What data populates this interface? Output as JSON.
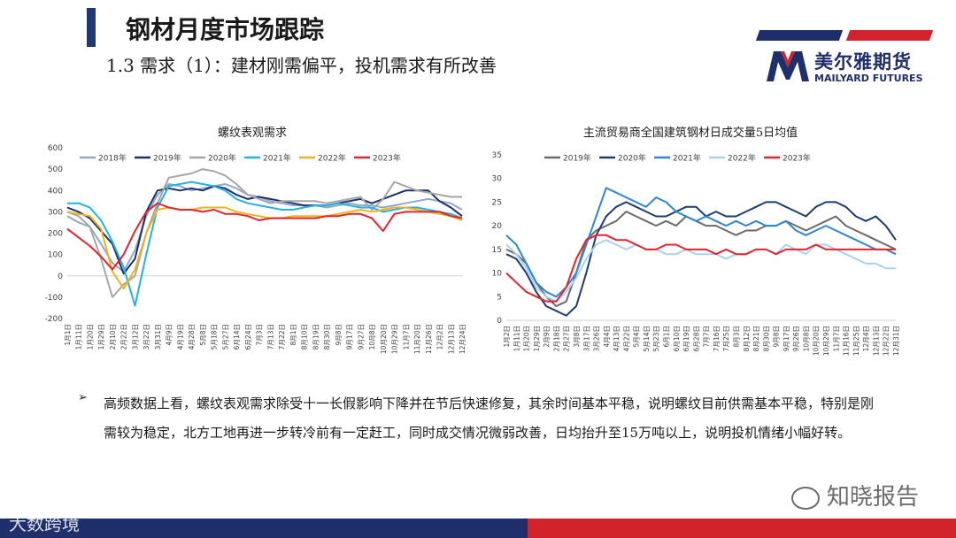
{
  "header": {
    "title": "钢材月度市场跟踪",
    "subtitle": "1.3 需求（1）：建材刚需偏平，投机需求有所改善"
  },
  "logo": {
    "cn": "美尔雅期货",
    "en": "MAILYARD FUTURES",
    "colors": {
      "blue": "#1f2f6b",
      "red": "#d2232a"
    }
  },
  "text": {
    "bullet": "➢",
    "paragraph": "高频数据上看，螺纹表观需求除受十一长假影响下降并在节后快速修复，其余时间基本平稳，说明螺纹目前供需基本平稳，特别是刚需较为稳定，北方工地再进一步转冷前有一定赶工，同时成交情况微弱改善，日均抬升至15万吨以上，说明投机情绪小幅好转。"
  },
  "watermarks": {
    "right": "知晓报告",
    "left": "大数跨境"
  },
  "chart_data": [
    {
      "type": "line",
      "title": "螺纹表观需求",
      "xlabel": "",
      "ylabel": "",
      "ylim": [
        -200,
        600
      ],
      "yticks": [
        -200,
        -100,
        0,
        100,
        200,
        300,
        400,
        500,
        600
      ],
      "x_tick_labels": [
        "1月1日",
        "1月11日",
        "1月20日",
        "1月29日",
        "2月10日",
        "2月22日",
        "3月12日",
        "3月22日",
        "3月31日",
        "4月9日",
        "4月19日",
        "4月28日",
        "5月8日",
        "5月18日",
        "5月27日",
        "6月14日",
        "6月24日",
        "7月3日",
        "7月13日",
        "7月22日",
        "8月1日",
        "8月10日",
        "8月19日",
        "8月30日",
        "9月8日",
        "9月17日",
        "9月27日",
        "10月8日",
        "10月20日",
        "10月29日",
        "11月7日",
        "11月20日",
        "11月26日",
        "12月2日",
        "12月13日",
        "12月24日"
      ],
      "series": [
        {
          "name": "2018年",
          "color": "#8fa9c9",
          "values": [
            280,
            250,
            230,
            150,
            60,
            20,
            120,
            280,
            380,
            430,
            420,
            400,
            410,
            420,
            430,
            410,
            380,
            370,
            350,
            340,
            330,
            330,
            330,
            320,
            330,
            340,
            330,
            330,
            320,
            330,
            340,
            350,
            360,
            350,
            340,
            310
          ]
        },
        {
          "name": "2019年",
          "color": "#1b2f6b",
          "values": [
            320,
            300,
            270,
            210,
            150,
            10,
            80,
            300,
            400,
            410,
            400,
            410,
            400,
            420,
            410,
            380,
            360,
            370,
            360,
            350,
            340,
            330,
            330,
            330,
            340,
            350,
            360,
            340,
            360,
            380,
            400,
            400,
            400,
            350,
            320,
            280
          ]
        },
        {
          "name": "2020年",
          "color": "#a6a6a6",
          "values": [
            300,
            280,
            230,
            80,
            -100,
            -40,
            0,
            200,
            340,
            460,
            470,
            480,
            500,
            490,
            470,
            430,
            380,
            360,
            340,
            350,
            350,
            350,
            350,
            340,
            350,
            360,
            370,
            310,
            360,
            440,
            420,
            400,
            390,
            380,
            370,
            370
          ]
        },
        {
          "name": "2021年",
          "color": "#22b2e3",
          "values": [
            340,
            340,
            320,
            260,
            160,
            40,
            -140,
            100,
            320,
            420,
            430,
            440,
            430,
            420,
            400,
            360,
            340,
            330,
            320,
            310,
            310,
            320,
            330,
            330,
            340,
            330,
            320,
            320,
            300,
            310,
            320,
            320,
            310,
            300,
            290,
            270
          ]
        },
        {
          "name": "2022年",
          "color": "#f2b418",
          "values": [
            300,
            290,
            280,
            220,
            20,
            -60,
            30,
            200,
            310,
            320,
            310,
            310,
            320,
            320,
            320,
            300,
            290,
            280,
            270,
            270,
            280,
            280,
            280,
            280,
            290,
            300,
            310,
            300,
            310,
            320,
            320,
            310,
            300,
            290,
            280,
            260
          ]
        },
        {
          "name": "2023年",
          "color": "#e6232d",
          "values": [
            220,
            180,
            140,
            90,
            30,
            100,
            210,
            300,
            340,
            320,
            310,
            310,
            300,
            310,
            290,
            290,
            280,
            260,
            270,
            270,
            270,
            270,
            270,
            280,
            280,
            290,
            290,
            270,
            210,
            290,
            300,
            300,
            300,
            300,
            280,
            270
          ]
        }
      ]
    },
    {
      "type": "line",
      "title": "主流贸易商全国建筑钢材日成交量5日均值",
      "xlabel": "",
      "ylabel": "",
      "ylim": [
        0,
        35
      ],
      "yticks": [
        0,
        5,
        10,
        15,
        20,
        25,
        30,
        35
      ],
      "x_tick_labels": [
        "1月2日",
        "1月11日",
        "1月20日",
        "1月29日",
        "2月9日",
        "2月18日",
        "2月27日",
        "3月8日",
        "3月17日",
        "3月26日",
        "4月4日",
        "4月13日",
        "4月22日",
        "5月4日",
        "5月14日",
        "5月23日",
        "6月1日",
        "6月10日",
        "6月19日",
        "6月28日",
        "7月7日",
        "7月16日",
        "7月25日",
        "8月3日",
        "8月12日",
        "8月21日",
        "8月30日",
        "9月8日",
        "9月17日",
        "9月26日",
        "10月8日",
        "10月20日",
        "10月29日",
        "11月7日",
        "11月16日",
        "11月25日",
        "12月4日",
        "12月13日",
        "12月22日",
        "12月31日"
      ],
      "series": [
        {
          "name": "2019年",
          "color": "#6b6b6b",
          "values": [
            15,
            14,
            12,
            8,
            5,
            3,
            4,
            10,
            17,
            19,
            20,
            21,
            23,
            22,
            21,
            20,
            21,
            20,
            22,
            21,
            20,
            20,
            19,
            18,
            19,
            19,
            20,
            20,
            21,
            20,
            19,
            20,
            21,
            22,
            20,
            19,
            18,
            17,
            16,
            15
          ]
        },
        {
          "name": "2020年",
          "color": "#1b3d73",
          "values": [
            14,
            13,
            10,
            6,
            3,
            2,
            1,
            3,
            10,
            18,
            22,
            24,
            25,
            24,
            23,
            22,
            22,
            23,
            24,
            24,
            22,
            23,
            22,
            22,
            23,
            24,
            25,
            25,
            24,
            23,
            22,
            24,
            25,
            25,
            24,
            22,
            21,
            22,
            20,
            17
          ]
        },
        {
          "name": "2021年",
          "color": "#2e86d8",
          "values": [
            18,
            16,
            12,
            8,
            6,
            5,
            7,
            10,
            16,
            22,
            28,
            27,
            26,
            25,
            24,
            26,
            25,
            23,
            22,
            21,
            22,
            21,
            20,
            21,
            20,
            21,
            20,
            20,
            21,
            19,
            18,
            19,
            20,
            19,
            18,
            17,
            16,
            15,
            15,
            14
          ]
        },
        {
          "name": "2022年",
          "color": "#a7d3f0",
          "values": [
            16,
            14,
            11,
            7,
            5,
            4,
            6,
            9,
            13,
            16,
            17,
            16,
            15,
            16,
            15,
            15,
            14,
            14,
            15,
            14,
            14,
            14,
            13,
            14,
            14,
            15,
            15,
            14,
            16,
            15,
            14,
            16,
            16,
            15,
            14,
            13,
            12,
            12,
            11,
            11
          ]
        },
        {
          "name": "2023年",
          "color": "#e6232d",
          "values": [
            10,
            8,
            6,
            5,
            4,
            4,
            7,
            13,
            17,
            18,
            18,
            17,
            17,
            16,
            15,
            15,
            16,
            16,
            15,
            15,
            15,
            14,
            15,
            14,
            14,
            15,
            15,
            14,
            15,
            15,
            15,
            16,
            15,
            15,
            15,
            15,
            15,
            15,
            15,
            15
          ]
        }
      ]
    }
  ]
}
